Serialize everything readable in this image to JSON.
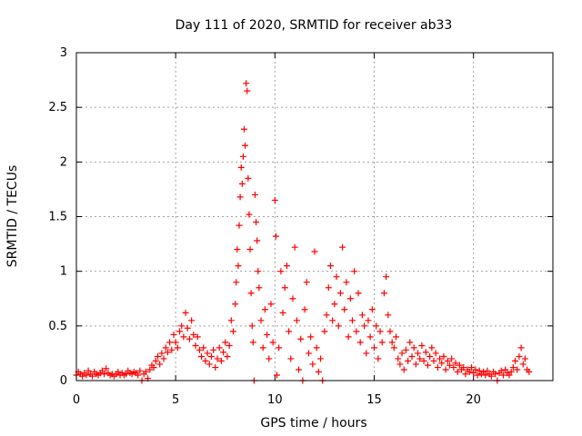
{
  "chart_data": {
    "type": "scatter",
    "title": "Day 111 of 2020, SRMTID for receiver ab33",
    "xlabel": "GPS time / hours",
    "ylabel": "SRMTID / TECUs",
    "xlim": [
      0,
      24
    ],
    "ylim": [
      0,
      3
    ],
    "xticks": [
      0,
      5,
      10,
      15,
      20
    ],
    "xtick_labels": [
      "0",
      "5",
      "10",
      "15",
      "20"
    ],
    "yticks": [
      0,
      0.5,
      1,
      1.5,
      2,
      2.5,
      3
    ],
    "ytick_labels": [
      "0",
      "0.5",
      "1",
      "1.5",
      "2",
      "2.5",
      "3"
    ],
    "grid": true,
    "marker": "+",
    "color": "#ff0000",
    "series": [
      {
        "name": "ab33",
        "points": [
          [
            0.0,
            0.05
          ],
          [
            0.1,
            0.08
          ],
          [
            0.2,
            0.06
          ],
          [
            0.3,
            0.04
          ],
          [
            0.4,
            0.07
          ],
          [
            0.5,
            0.05
          ],
          [
            0.6,
            0.09
          ],
          [
            0.7,
            0.06
          ],
          [
            0.8,
            0.04
          ],
          [
            0.9,
            0.08
          ],
          [
            1.0,
            0.06
          ],
          [
            1.1,
            0.05
          ],
          [
            1.2,
            0.07
          ],
          [
            1.3,
            0.09
          ],
          [
            1.4,
            0.06
          ],
          [
            1.5,
            0.11
          ],
          [
            1.6,
            0.07
          ],
          [
            1.7,
            0.05
          ],
          [
            1.8,
            0.06
          ],
          [
            1.9,
            0.04
          ],
          [
            2.0,
            0.06
          ],
          [
            2.1,
            0.08
          ],
          [
            2.2,
            0.05
          ],
          [
            2.3,
            0.07
          ],
          [
            2.4,
            0.05
          ],
          [
            2.5,
            0.06
          ],
          [
            2.6,
            0.09
          ],
          [
            2.7,
            0.07
          ],
          [
            2.8,
            0.06
          ],
          [
            2.9,
            0.08
          ],
          [
            3.0,
            0.07
          ],
          [
            3.1,
            0.05
          ],
          [
            3.2,
            0.09
          ],
          [
            3.3,
            0.0
          ],
          [
            3.4,
            0.06
          ],
          [
            3.5,
            0.08
          ],
          [
            3.6,
            0.02
          ],
          [
            3.7,
            0.1
          ],
          [
            3.8,
            0.14
          ],
          [
            3.9,
            0.12
          ],
          [
            4.0,
            0.18
          ],
          [
            4.1,
            0.22
          ],
          [
            4.2,
            0.15
          ],
          [
            4.3,
            0.25
          ],
          [
            4.4,
            0.2
          ],
          [
            4.5,
            0.3
          ],
          [
            4.6,
            0.26
          ],
          [
            4.7,
            0.35
          ],
          [
            4.8,
            0.28
          ],
          [
            4.9,
            0.42
          ],
          [
            5.0,
            0.35
          ],
          [
            5.1,
            0.3
          ],
          [
            5.2,
            0.45
          ],
          [
            5.3,
            0.5
          ],
          [
            5.4,
            0.4
          ],
          [
            5.5,
            0.62
          ],
          [
            5.6,
            0.48
          ],
          [
            5.7,
            0.38
          ],
          [
            5.8,
            0.55
          ],
          [
            5.9,
            0.42
          ],
          [
            6.0,
            0.32
          ],
          [
            6.1,
            0.4
          ],
          [
            6.2,
            0.28
          ],
          [
            6.3,
            0.22
          ],
          [
            6.4,
            0.3
          ],
          [
            6.5,
            0.18
          ],
          [
            6.6,
            0.25
          ],
          [
            6.7,
            0.15
          ],
          [
            6.8,
            0.22
          ],
          [
            6.9,
            0.28
          ],
          [
            7.0,
            0.12
          ],
          [
            7.1,
            0.2
          ],
          [
            7.2,
            0.3
          ],
          [
            7.3,
            0.18
          ],
          [
            7.4,
            0.26
          ],
          [
            7.5,
            0.35
          ],
          [
            7.6,
            0.22
          ],
          [
            7.7,
            0.32
          ],
          [
            7.8,
            0.55
          ],
          [
            7.9,
            0.45
          ],
          [
            8.0,
            0.7
          ],
          [
            8.05,
            0.9
          ],
          [
            8.1,
            1.2
          ],
          [
            8.15,
            1.05
          ],
          [
            8.2,
            1.42
          ],
          [
            8.25,
            1.68
          ],
          [
            8.3,
            1.95
          ],
          [
            8.35,
            1.8
          ],
          [
            8.4,
            2.05
          ],
          [
            8.45,
            2.3
          ],
          [
            8.5,
            2.15
          ],
          [
            8.55,
            2.72
          ],
          [
            8.6,
            2.65
          ],
          [
            8.65,
            1.85
          ],
          [
            8.7,
            1.52
          ],
          [
            8.75,
            1.2
          ],
          [
            8.8,
            0.8
          ],
          [
            8.85,
            0.5
          ],
          [
            8.9,
            0.35
          ],
          [
            8.95,
            0.0
          ],
          [
            9.0,
            1.7
          ],
          [
            9.05,
            1.45
          ],
          [
            9.1,
            1.28
          ],
          [
            9.15,
            1.0
          ],
          [
            9.2,
            0.85
          ],
          [
            9.3,
            0.55
          ],
          [
            9.4,
            0.3
          ],
          [
            9.5,
            0.65
          ],
          [
            9.6,
            0.42
          ],
          [
            9.7,
            0.2
          ],
          [
            9.8,
            0.7
          ],
          [
            9.9,
            0.35
          ],
          [
            10.0,
            1.65
          ],
          [
            10.05,
            1.32
          ],
          [
            10.1,
            0.05
          ],
          [
            10.2,
            0.3
          ],
          [
            10.3,
            1.0
          ],
          [
            10.4,
            0.62
          ],
          [
            10.5,
            0.85
          ],
          [
            10.6,
            1.05
          ],
          [
            10.7,
            0.45
          ],
          [
            10.8,
            0.2
          ],
          [
            10.9,
            0.75
          ],
          [
            11.0,
            1.22
          ],
          [
            11.1,
            0.55
          ],
          [
            11.2,
            0.1
          ],
          [
            11.3,
            0.38
          ],
          [
            11.4,
            0.0
          ],
          [
            11.5,
            0.65
          ],
          [
            11.6,
            0.9
          ],
          [
            11.7,
            0.25
          ],
          [
            11.8,
            0.4
          ],
          [
            11.9,
            0.15
          ],
          [
            12.0,
            1.18
          ],
          [
            12.1,
            0.3
          ],
          [
            12.2,
            0.08
          ],
          [
            12.3,
            0.2
          ],
          [
            12.4,
            0.0
          ],
          [
            12.5,
            0.45
          ],
          [
            12.6,
            0.6
          ],
          [
            12.7,
            0.85
          ],
          [
            12.8,
            1.05
          ],
          [
            12.9,
            0.55
          ],
          [
            13.0,
            0.7
          ],
          [
            13.1,
            0.95
          ],
          [
            13.2,
            0.5
          ],
          [
            13.3,
            0.8
          ],
          [
            13.4,
            1.22
          ],
          [
            13.5,
            0.65
          ],
          [
            13.6,
            0.9
          ],
          [
            13.7,
            0.4
          ],
          [
            13.8,
            0.75
          ],
          [
            13.9,
            0.55
          ],
          [
            14.0,
            1.0
          ],
          [
            14.1,
            0.45
          ],
          [
            14.2,
            0.8
          ],
          [
            14.3,
            0.35
          ],
          [
            14.4,
            0.6
          ],
          [
            14.5,
            0.5
          ],
          [
            14.6,
            0.25
          ],
          [
            14.7,
            0.55
          ],
          [
            14.8,
            0.4
          ],
          [
            14.9,
            0.65
          ],
          [
            15.0,
            0.3
          ],
          [
            15.1,
            0.5
          ],
          [
            15.2,
            0.2
          ],
          [
            15.3,
            0.45
          ],
          [
            15.4,
            0.35
          ],
          [
            15.5,
            0.8
          ],
          [
            15.6,
            0.95
          ],
          [
            15.7,
            0.6
          ],
          [
            15.8,
            0.45
          ],
          [
            15.9,
            0.35
          ],
          [
            16.0,
            0.3
          ],
          [
            16.1,
            0.4
          ],
          [
            16.2,
            0.2
          ],
          [
            16.3,
            0.15
          ],
          [
            16.4,
            0.25
          ],
          [
            16.5,
            0.1
          ],
          [
            16.6,
            0.28
          ],
          [
            16.7,
            0.18
          ],
          [
            16.8,
            0.35
          ],
          [
            16.9,
            0.22
          ],
          [
            17.0,
            0.3
          ],
          [
            17.1,
            0.15
          ],
          [
            17.2,
            0.25
          ],
          [
            17.3,
            0.2
          ],
          [
            17.4,
            0.32
          ],
          [
            17.5,
            0.18
          ],
          [
            17.6,
            0.26
          ],
          [
            17.7,
            0.14
          ],
          [
            17.8,
            0.22
          ],
          [
            17.9,
            0.3
          ],
          [
            18.0,
            0.18
          ],
          [
            18.1,
            0.25
          ],
          [
            18.2,
            0.12
          ],
          [
            18.3,
            0.2
          ],
          [
            18.4,
            0.16
          ],
          [
            18.5,
            0.22
          ],
          [
            18.6,
            0.1
          ],
          [
            18.7,
            0.18
          ],
          [
            18.8,
            0.14
          ],
          [
            18.9,
            0.2
          ],
          [
            19.0,
            0.12
          ],
          [
            19.1,
            0.16
          ],
          [
            19.2,
            0.08
          ],
          [
            19.3,
            0.14
          ],
          [
            19.4,
            0.1
          ],
          [
            19.5,
            0.12
          ],
          [
            19.6,
            0.06
          ],
          [
            19.7,
            0.1
          ],
          [
            19.8,
            0.08
          ],
          [
            19.9,
            0.12
          ],
          [
            20.0,
            0.07
          ],
          [
            20.1,
            0.1
          ],
          [
            20.2,
            0.05
          ],
          [
            20.3,
            0.09
          ],
          [
            20.4,
            0.06
          ],
          [
            20.5,
            0.08
          ],
          [
            20.6,
            0.05
          ],
          [
            20.7,
            0.09
          ],
          [
            20.8,
            0.06
          ],
          [
            20.9,
            0.04
          ],
          [
            21.0,
            0.08
          ],
          [
            21.1,
            0.06
          ],
          [
            21.2,
            0.0
          ],
          [
            21.3,
            0.07
          ],
          [
            21.4,
            0.09
          ],
          [
            21.5,
            0.05
          ],
          [
            21.6,
            0.1
          ],
          [
            21.7,
            0.07
          ],
          [
            21.8,
            0.05
          ],
          [
            21.9,
            0.08
          ],
          [
            22.0,
            0.12
          ],
          [
            22.1,
            0.18
          ],
          [
            22.2,
            0.1
          ],
          [
            22.3,
            0.22
          ],
          [
            22.4,
            0.3
          ],
          [
            22.5,
            0.15
          ],
          [
            22.6,
            0.2
          ],
          [
            22.7,
            0.1
          ],
          [
            22.8,
            0.08
          ]
        ]
      }
    ]
  }
}
